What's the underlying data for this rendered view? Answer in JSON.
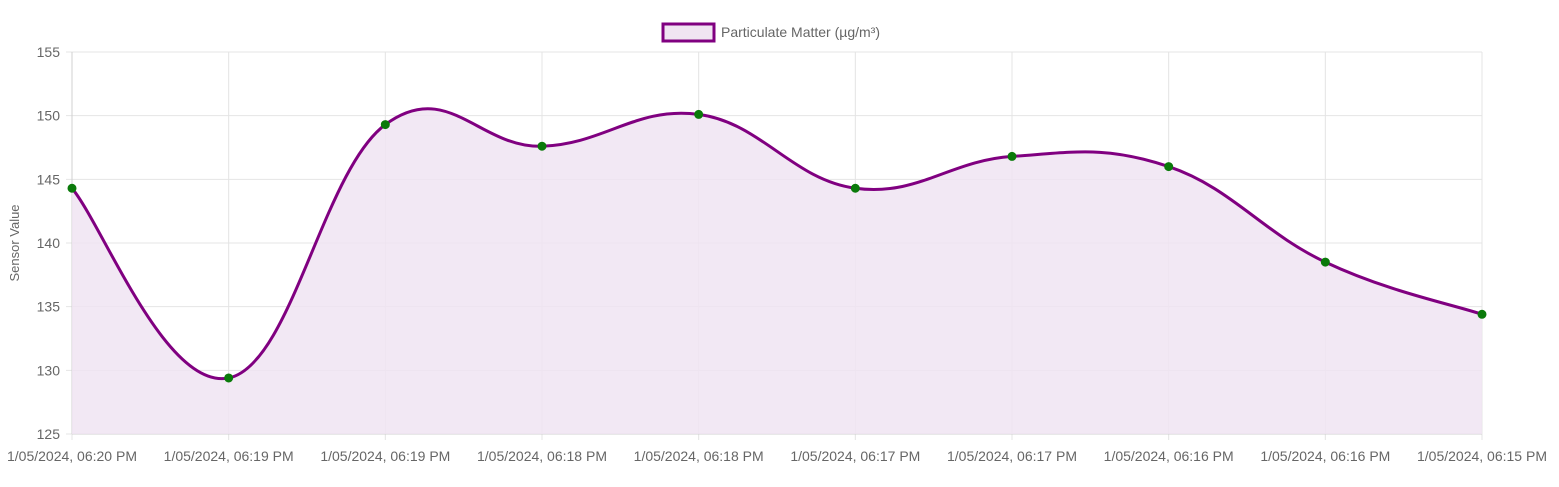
{
  "chart_data": {
    "type": "line",
    "title": "",
    "xlabel": "",
    "ylabel": "Sensor Value",
    "ylim": [
      125,
      155
    ],
    "yticks": [
      125,
      130,
      135,
      140,
      145,
      150,
      155
    ],
    "categories": [
      "1/05/2024, 06:20 PM",
      "1/05/2024, 06:19 PM",
      "1/05/2024, 06:19 PM",
      "1/05/2024, 06:18 PM",
      "1/05/2024, 06:18 PM",
      "1/05/2024, 06:17 PM",
      "1/05/2024, 06:17 PM",
      "1/05/2024, 06:16 PM",
      "1/05/2024, 06:16 PM",
      "1/05/2024, 06:15 PM"
    ],
    "series": [
      {
        "name": "Particulate Matter (µg/m³)",
        "values": [
          144.3,
          129.4,
          149.3,
          147.6,
          150.1,
          144.3,
          146.8,
          146.0,
          138.5,
          134.4
        ],
        "line_color": "#800080",
        "fill_color": "#f0e4f2",
        "point_color": "#0a7a0a",
        "smooth": true,
        "filled": true
      }
    ],
    "grid": true,
    "legend_position": "top-center"
  }
}
